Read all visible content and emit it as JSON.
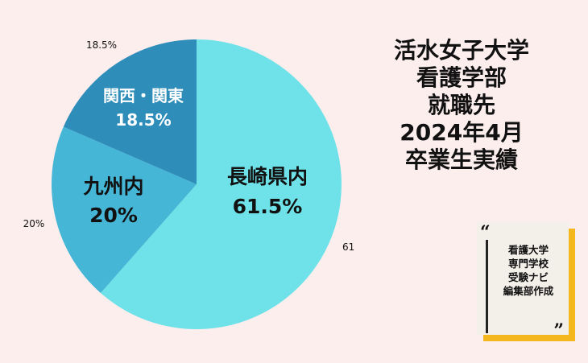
{
  "title_lines": [
    "活水女子大学",
    "看護学部",
    "就職先",
    "2024年4月",
    "卒業生実績"
  ],
  "credit": {
    "open_quote": "“",
    "close_quote": "”",
    "lines": [
      "看護大学",
      "専門学校",
      "受験ナビ",
      "編集部作成"
    ]
  },
  "colors": {
    "background": "#fdeeee",
    "series": [
      "#6ee2e8",
      "#45b6d6",
      "#2f8dba"
    ],
    "inside_label_dark": "#111111",
    "inside_label_light": "#ffffff",
    "credit_accent": "#f4b81e"
  },
  "chart_data": {
    "type": "pie",
    "categories": [
      "長崎県内",
      "九州内",
      "関西・関東"
    ],
    "values": [
      61.5,
      20,
      18.5
    ],
    "percent_labels": [
      "61.5%",
      "20%",
      "18.5%"
    ],
    "start_angle_deg": 0,
    "direction": "clockwise"
  }
}
